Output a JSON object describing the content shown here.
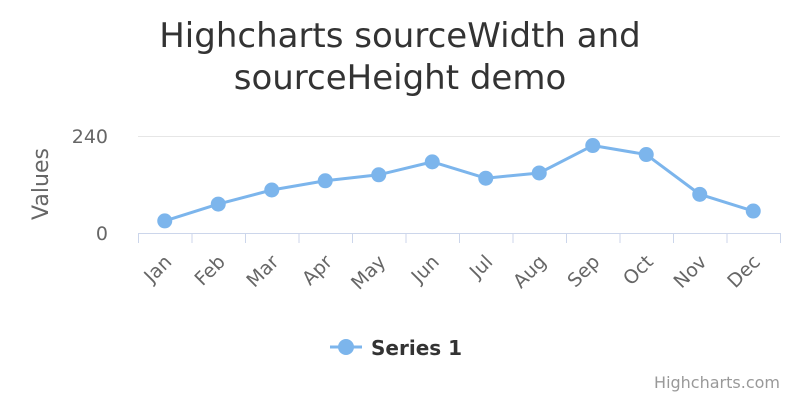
{
  "chart_data": {
    "type": "line",
    "title": "Highcharts sourceWidth and sourceHeight demo",
    "title_lines": [
      "Highcharts sourceWidth and",
      "sourceHeight demo"
    ],
    "ylabel": "Values",
    "xlabel": "",
    "categories": [
      "Jan",
      "Feb",
      "Mar",
      "Apr",
      "May",
      "Jun",
      "Jul",
      "Aug",
      "Sep",
      "Oct",
      "Nov",
      "Dec"
    ],
    "series": [
      {
        "name": "Series 1",
        "color": "#7cb5ec",
        "values": [
          29.9,
          71.5,
          106.4,
          129.2,
          144.0,
          176.0,
          135.6,
          148.5,
          216.4,
          194.1,
          95.6,
          54.4
        ]
      }
    ],
    "ylim": [
      0,
      240
    ],
    "yticks": [
      "0",
      "240"
    ],
    "grid": true,
    "legend_position": "bottom-center",
    "credits": "Highcharts.com"
  }
}
